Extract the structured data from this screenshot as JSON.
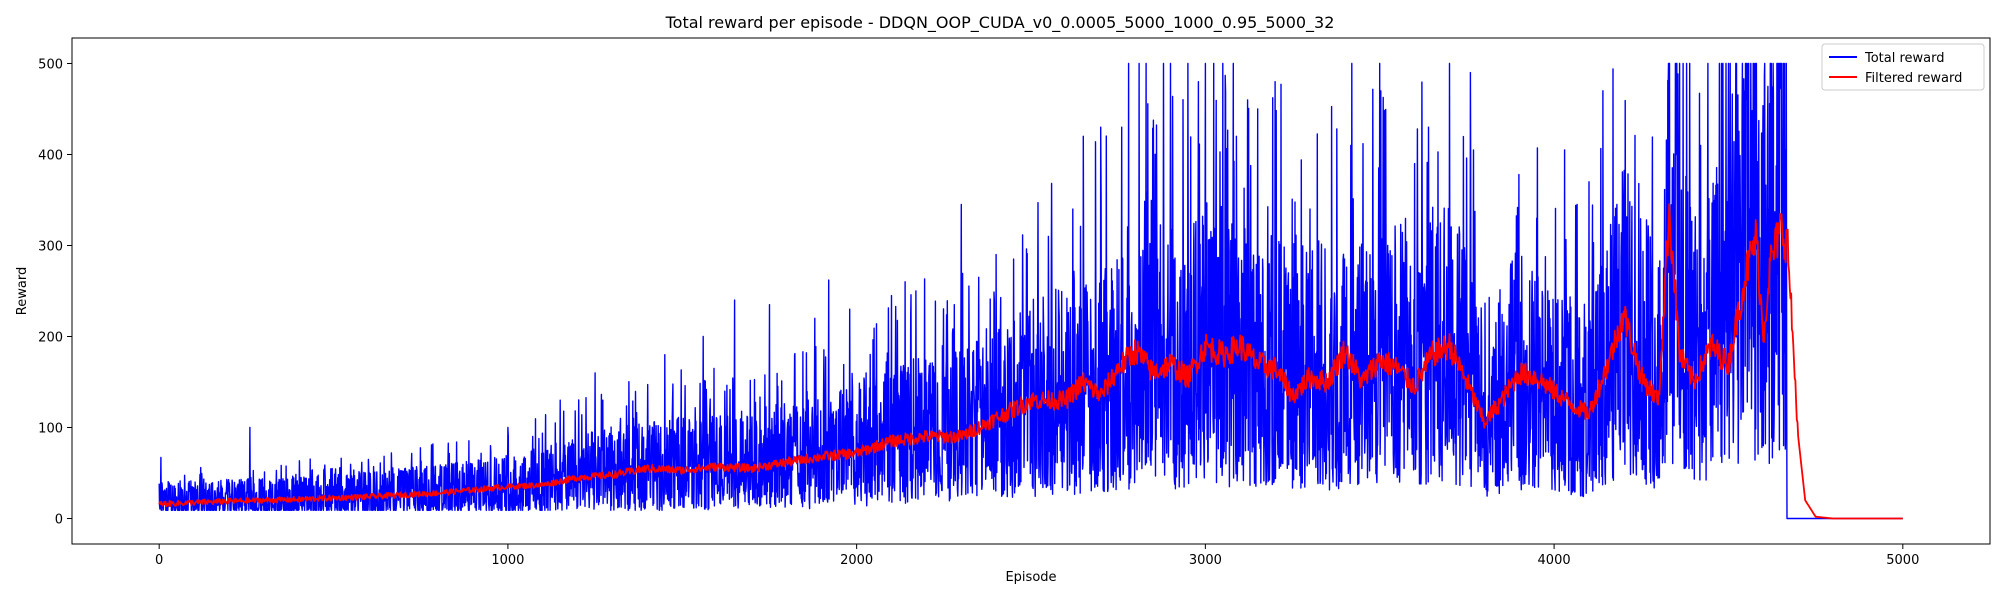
{
  "chart_data": {
    "type": "line",
    "title": "Total reward per episode - DDQN_OOP_CUDA_v0_0.0005_5000_1000_0.95_5000_32",
    "xlabel": "Episode",
    "ylabel": "Reward",
    "xlim": [
      -250,
      5250
    ],
    "ylim": [
      -28,
      528
    ],
    "xticks": [
      0,
      1000,
      2000,
      3000,
      4000,
      5000
    ],
    "yticks": [
      0,
      100,
      200,
      300,
      400,
      500
    ],
    "grid": false,
    "legend": "top-right",
    "series": [
      {
        "name": "Total reward",
        "color": "#0000ff",
        "style": "noisy",
        "mean_curve": [
          [
            0,
            18
          ],
          [
            300,
            20
          ],
          [
            600,
            24
          ],
          [
            900,
            30
          ],
          [
            1100,
            38
          ],
          [
            1300,
            50
          ],
          [
            1500,
            55
          ],
          [
            1700,
            58
          ],
          [
            1900,
            65
          ],
          [
            2100,
            85
          ],
          [
            2300,
            95
          ],
          [
            2500,
            120
          ],
          [
            2700,
            140
          ],
          [
            2900,
            160
          ],
          [
            3000,
            170
          ],
          [
            3200,
            160
          ],
          [
            3400,
            150
          ],
          [
            3600,
            170
          ],
          [
            3700,
            180
          ],
          [
            3800,
            120
          ],
          [
            3900,
            150
          ],
          [
            4000,
            130
          ],
          [
            4100,
            110
          ],
          [
            4200,
            200
          ],
          [
            4300,
            150
          ],
          [
            4330,
            300
          ],
          [
            4400,
            170
          ],
          [
            4500,
            220
          ],
          [
            4550,
            320
          ],
          [
            4600,
            250
          ],
          [
            4650,
            330
          ],
          [
            4667,
            330
          ],
          [
            4668,
            0
          ],
          [
            5000,
            0
          ]
        ],
        "spikes": [
          [
            5,
            67
          ],
          [
            260,
            100
          ],
          [
            600,
            65
          ],
          [
            950,
            80
          ],
          [
            1000,
            100
          ],
          [
            1150,
            130
          ],
          [
            1250,
            160
          ],
          [
            1450,
            180
          ],
          [
            1560,
            200
          ],
          [
            1650,
            240
          ],
          [
            1750,
            235
          ],
          [
            1880,
            220
          ],
          [
            1920,
            262
          ],
          [
            1980,
            230
          ],
          [
            2100,
            245
          ],
          [
            2170,
            250
          ],
          [
            2280,
            235
          ],
          [
            2300,
            345
          ],
          [
            2350,
            265
          ],
          [
            2400,
            290
          ],
          [
            2450,
            285
          ],
          [
            2550,
            310
          ],
          [
            2620,
            340
          ],
          [
            2650,
            420
          ],
          [
            2700,
            430
          ],
          [
            2760,
            430
          ],
          [
            2780,
            500
          ],
          [
            2810,
            500
          ],
          [
            2830,
            500
          ],
          [
            2880,
            500
          ],
          [
            2900,
            500
          ],
          [
            2950,
            500
          ],
          [
            2980,
            480
          ],
          [
            3000,
            500
          ],
          [
            3050,
            500
          ],
          [
            3080,
            500
          ],
          [
            3150,
            450
          ],
          [
            3200,
            480
          ],
          [
            3300,
            340
          ],
          [
            3420,
            500
          ],
          [
            3500,
            500
          ],
          [
            3600,
            390
          ],
          [
            3640,
            430
          ],
          [
            3700,
            500
          ],
          [
            3760,
            490
          ],
          [
            3950,
            330
          ],
          [
            4030,
            405
          ],
          [
            4100,
            370
          ],
          [
            4140,
            470
          ],
          [
            4180,
            345
          ],
          [
            4200,
            340
          ],
          [
            4330,
            500
          ],
          [
            4350,
            500
          ],
          [
            4420,
            410
          ],
          [
            4480,
            500
          ],
          [
            4500,
            500
          ],
          [
            4550,
            460
          ],
          [
            4580,
            500
          ],
          [
            4620,
            500
          ],
          [
            4650,
            500
          ],
          [
            4660,
            500
          ]
        ]
      },
      {
        "name": "Filtered reward",
        "color": "#ff0000",
        "style": "smooth",
        "points": [
          [
            0,
            16
          ],
          [
            200,
            19
          ],
          [
            400,
            21
          ],
          [
            600,
            24
          ],
          [
            800,
            28
          ],
          [
            1000,
            35
          ],
          [
            1100,
            37
          ],
          [
            1200,
            45
          ],
          [
            1300,
            48
          ],
          [
            1400,
            55
          ],
          [
            1500,
            53
          ],
          [
            1600,
            57
          ],
          [
            1700,
            55
          ],
          [
            1800,
            62
          ],
          [
            1900,
            68
          ],
          [
            2000,
            72
          ],
          [
            2100,
            85
          ],
          [
            2200,
            90
          ],
          [
            2300,
            90
          ],
          [
            2400,
            110
          ],
          [
            2500,
            130
          ],
          [
            2600,
            130
          ],
          [
            2650,
            150
          ],
          [
            2700,
            135
          ],
          [
            2750,
            165
          ],
          [
            2800,
            185
          ],
          [
            2850,
            160
          ],
          [
            2900,
            170
          ],
          [
            2950,
            155
          ],
          [
            3000,
            190
          ],
          [
            3050,
            180
          ],
          [
            3100,
            190
          ],
          [
            3150,
            170
          ],
          [
            3200,
            165
          ],
          [
            3250,
            135
          ],
          [
            3300,
            155
          ],
          [
            3350,
            150
          ],
          [
            3400,
            185
          ],
          [
            3450,
            150
          ],
          [
            3500,
            175
          ],
          [
            3550,
            165
          ],
          [
            3600,
            145
          ],
          [
            3650,
            180
          ],
          [
            3700,
            190
          ],
          [
            3750,
            150
          ],
          [
            3800,
            105
          ],
          [
            3850,
            130
          ],
          [
            3900,
            160
          ],
          [
            3950,
            155
          ],
          [
            4000,
            140
          ],
          [
            4050,
            125
          ],
          [
            4100,
            115
          ],
          [
            4150,
            165
          ],
          [
            4200,
            225
          ],
          [
            4250,
            155
          ],
          [
            4300,
            130
          ],
          [
            4330,
            340
          ],
          [
            4360,
            180
          ],
          [
            4400,
            150
          ],
          [
            4450,
            190
          ],
          [
            4500,
            170
          ],
          [
            4550,
            270
          ],
          [
            4580,
            310
          ],
          [
            4600,
            200
          ],
          [
            4620,
            280
          ],
          [
            4650,
            320
          ],
          [
            4670,
            300
          ],
          [
            4700,
            90
          ],
          [
            4720,
            20
          ],
          [
            4750,
            2
          ],
          [
            4800,
            0
          ],
          [
            5000,
            0
          ]
        ]
      }
    ]
  }
}
